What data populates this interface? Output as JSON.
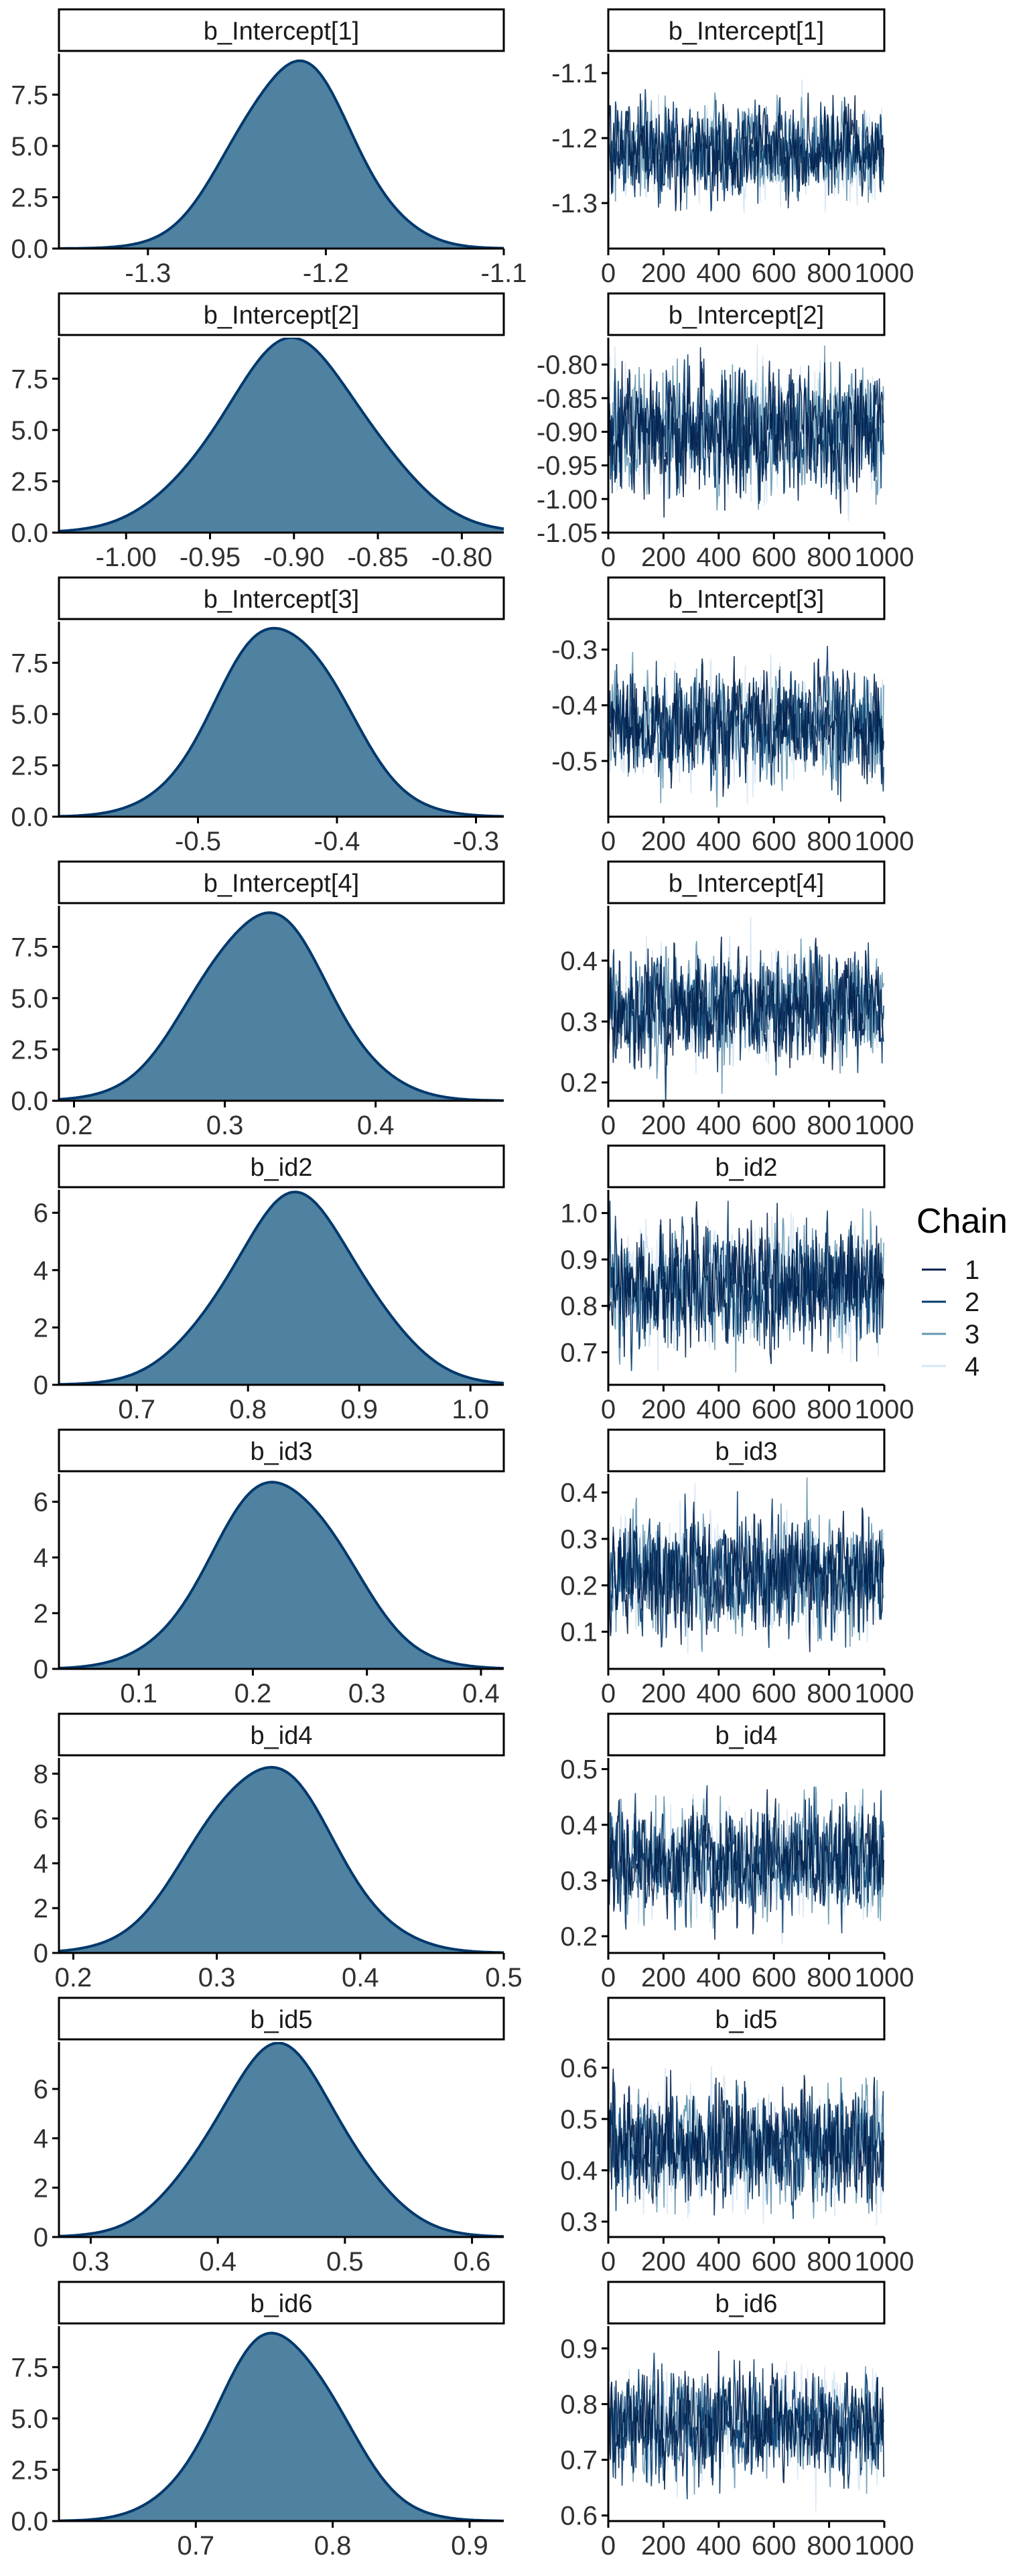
{
  "legend": {
    "title": "Chain",
    "entries": [
      "1",
      "2",
      "3",
      "4"
    ],
    "colors": [
      "#011f4b",
      "#03396c",
      "#6497b1",
      "#d6e6f4"
    ],
    "placement": "right"
  },
  "colors": {
    "density_fill": "#4f81a1",
    "density_line": "#03396c",
    "strip_border": "#000000",
    "axis": "#000000",
    "tick_text": "#303030"
  },
  "chart_data": [
    {
      "type": "area",
      "title": "b_Intercept[1]",
      "subplot": "density",
      "xlim": [
        -1.35,
        -1.1
      ],
      "ylim": [
        0,
        9.5
      ],
      "xticks": [
        "-1.3",
        "-1.2",
        "-1.1"
      ],
      "yticks": [
        "0.0",
        "2.5",
        "5.0",
        "7.5"
      ],
      "density": {
        "mean": -1.218,
        "sd": 0.033,
        "peak": 9.1
      }
    },
    {
      "type": "line",
      "title": "b_Intercept[1]",
      "subplot": "trace",
      "xlim": [
        0,
        1000
      ],
      "ylim": [
        -1.37,
        -1.07
      ],
      "xticks": [
        "0",
        "200",
        "400",
        "600",
        "800",
        "1000"
      ],
      "yticks": [
        "-1.3",
        "-1.2",
        "-1.1"
      ],
      "trace": {
        "chains": [
          "1",
          "2",
          "3",
          "4"
        ],
        "iterations": 1000,
        "center": -1.22,
        "sd": 0.034
      }
    },
    {
      "type": "area",
      "title": "b_Intercept[2]",
      "subplot": "density",
      "xlim": [
        -1.04,
        -0.775
      ],
      "ylim": [
        0,
        9.5
      ],
      "xticks": [
        "-1.00",
        "-0.95",
        "-0.90",
        "-0.85",
        "-0.80"
      ],
      "yticks": [
        "0.0",
        "2.5",
        "5.0",
        "7.5"
      ],
      "density": {
        "mean": -0.9,
        "sd": 0.045,
        "peak": 9.2
      }
    },
    {
      "type": "line",
      "title": "b_Intercept[2]",
      "subplot": "trace",
      "xlim": [
        0,
        1000
      ],
      "ylim": [
        -1.05,
        -0.76
      ],
      "xticks": [
        "0",
        "200",
        "400",
        "600",
        "800",
        "1000"
      ],
      "yticks": [
        "-1.05",
        "-1.00",
        "-0.95",
        "-0.90",
        "-0.85",
        "-0.80"
      ],
      "trace": {
        "chains": [
          "1",
          "2",
          "3",
          "4"
        ],
        "iterations": 1000,
        "center": -0.9,
        "sd": 0.045
      }
    },
    {
      "type": "area",
      "title": "b_Intercept[3]",
      "subplot": "density",
      "xlim": [
        -0.6,
        -0.28
      ],
      "ylim": [
        0,
        9.5
      ],
      "xticks": [
        "-0.5",
        "-0.4",
        "-0.3"
      ],
      "yticks": [
        "0.0",
        "2.5",
        "5.0",
        "7.5"
      ],
      "density": {
        "mean": -0.441,
        "sd": 0.045,
        "peak": 9.4
      }
    },
    {
      "type": "line",
      "title": "b_Intercept[3]",
      "subplot": "trace",
      "xlim": [
        0,
        1000
      ],
      "ylim": [
        -0.6,
        -0.25
      ],
      "xticks": [
        "0",
        "200",
        "400",
        "600",
        "800",
        "1000"
      ],
      "yticks": [
        "-0.5",
        "-0.4",
        "-0.3"
      ],
      "trace": {
        "chains": [
          "1",
          "2",
          "3",
          "4"
        ],
        "iterations": 1000,
        "center": -0.44,
        "sd": 0.045
      }
    },
    {
      "type": "area",
      "title": "b_Intercept[4]",
      "subplot": "density",
      "xlim": [
        0.19,
        0.485
      ],
      "ylim": [
        0,
        9.5
      ],
      "xticks": [
        "0.2",
        "0.3",
        "0.4"
      ],
      "yticks": [
        "0.0",
        "2.5",
        "5.0",
        "7.5"
      ],
      "density": {
        "mean": 0.325,
        "sd": 0.043,
        "peak": 9.2
      }
    },
    {
      "type": "line",
      "title": "b_Intercept[4]",
      "subplot": "trace",
      "xlim": [
        0,
        1000
      ],
      "ylim": [
        0.17,
        0.49
      ],
      "xticks": [
        "0",
        "200",
        "400",
        "600",
        "800",
        "1000"
      ],
      "yticks": [
        "0.2",
        "0.3",
        "0.4"
      ],
      "trace": {
        "chains": [
          "1",
          "2",
          "3",
          "4"
        ],
        "iterations": 1000,
        "center": 0.325,
        "sd": 0.043
      }
    },
    {
      "type": "area",
      "title": "b_id2",
      "subplot": "density",
      "xlim": [
        0.63,
        1.03
      ],
      "ylim": [
        0,
        6.8
      ],
      "xticks": [
        "0.7",
        "0.8",
        "0.9",
        "1.0"
      ],
      "yticks": [
        "0",
        "2",
        "4",
        "6"
      ],
      "density": {
        "mean": 0.843,
        "sd": 0.061,
        "peak": 6.5
      }
    },
    {
      "type": "line",
      "title": "b_id2",
      "subplot": "trace",
      "xlim": [
        0,
        1000
      ],
      "ylim": [
        0.63,
        1.05
      ],
      "xticks": [
        "0",
        "200",
        "400",
        "600",
        "800",
        "1000"
      ],
      "yticks": [
        "0.7",
        "0.8",
        "0.9",
        "1.0"
      ],
      "trace": {
        "chains": [
          "1",
          "2",
          "3",
          "4"
        ],
        "iterations": 1000,
        "center": 0.843,
        "sd": 0.061
      }
    },
    {
      "type": "area",
      "title": "b_id3",
      "subplot": "density",
      "xlim": [
        0.03,
        0.42
      ],
      "ylim": [
        0,
        7.0
      ],
      "xticks": [
        "0.1",
        "0.2",
        "0.3",
        "0.4"
      ],
      "yticks": [
        "0",
        "2",
        "4",
        "6"
      ],
      "density": {
        "mean": 0.223,
        "sd": 0.058,
        "peak": 6.8
      }
    },
    {
      "type": "line",
      "title": "b_id3",
      "subplot": "trace",
      "xlim": [
        0,
        1000
      ],
      "ylim": [
        0.02,
        0.44
      ],
      "xticks": [
        "0",
        "200",
        "400",
        "600",
        "800",
        "1000"
      ],
      "yticks": [
        "0.1",
        "0.2",
        "0.3",
        "0.4"
      ],
      "trace": {
        "chains": [
          "1",
          "2",
          "3",
          "4"
        ],
        "iterations": 1000,
        "center": 0.223,
        "sd": 0.058
      }
    },
    {
      "type": "area",
      "title": "b_id4",
      "subplot": "density",
      "xlim": [
        0.19,
        0.5
      ],
      "ylim": [
        0,
        8.7
      ],
      "xticks": [
        "0.2",
        "0.3",
        "0.4",
        "0.5"
      ],
      "yticks": [
        "0",
        "2",
        "4",
        "6",
        "8"
      ],
      "density": {
        "mean": 0.333,
        "sd": 0.047,
        "peak": 8.4
      }
    },
    {
      "type": "line",
      "title": "b_id4",
      "subplot": "trace",
      "xlim": [
        0,
        1000
      ],
      "ylim": [
        0.17,
        0.52
      ],
      "xticks": [
        "0",
        "200",
        "400",
        "600",
        "800",
        "1000"
      ],
      "yticks": [
        "0.2",
        "0.3",
        "0.4",
        "0.5"
      ],
      "trace": {
        "chains": [
          "1",
          "2",
          "3",
          "4"
        ],
        "iterations": 1000,
        "center": 0.333,
        "sd": 0.047
      }
    },
    {
      "type": "area",
      "title": "b_id5",
      "subplot": "density",
      "xlim": [
        0.275,
        0.625
      ],
      "ylim": [
        0,
        7.9
      ],
      "xticks": [
        "0.3",
        "0.4",
        "0.5",
        "0.6"
      ],
      "yticks": [
        "0",
        "2",
        "4",
        "6"
      ],
      "density": {
        "mean": 0.447,
        "sd": 0.052,
        "peak": 7.6
      }
    },
    {
      "type": "line",
      "title": "b_id5",
      "subplot": "trace",
      "xlim": [
        0,
        1000
      ],
      "ylim": [
        0.27,
        0.65
      ],
      "xticks": [
        "0",
        "200",
        "400",
        "600",
        "800",
        "1000"
      ],
      "yticks": [
        "0.3",
        "0.4",
        "0.5",
        "0.6"
      ],
      "trace": {
        "chains": [
          "1",
          "2",
          "3",
          "4"
        ],
        "iterations": 1000,
        "center": 0.447,
        "sd": 0.052
      }
    },
    {
      "type": "area",
      "title": "b_id6",
      "subplot": "density",
      "xlim": [
        0.6,
        0.925
      ],
      "ylim": [
        0,
        9.5
      ],
      "xticks": [
        "0.7",
        "0.8",
        "0.9"
      ],
      "yticks": [
        "0.0",
        "2.5",
        "5.0",
        "7.5"
      ],
      "density": {
        "mean": 0.76,
        "sd": 0.044,
        "peak": 9.2
      }
    },
    {
      "type": "line",
      "title": "b_id6",
      "subplot": "trace",
      "xlim": [
        0,
        1000
      ],
      "ylim": [
        0.59,
        0.94
      ],
      "xticks": [
        "0",
        "200",
        "400",
        "600",
        "800",
        "1000"
      ],
      "yticks": [
        "0.6",
        "0.7",
        "0.8",
        "0.9"
      ],
      "trace": {
        "chains": [
          "1",
          "2",
          "3",
          "4"
        ],
        "iterations": 1000,
        "center": 0.76,
        "sd": 0.044
      }
    }
  ]
}
